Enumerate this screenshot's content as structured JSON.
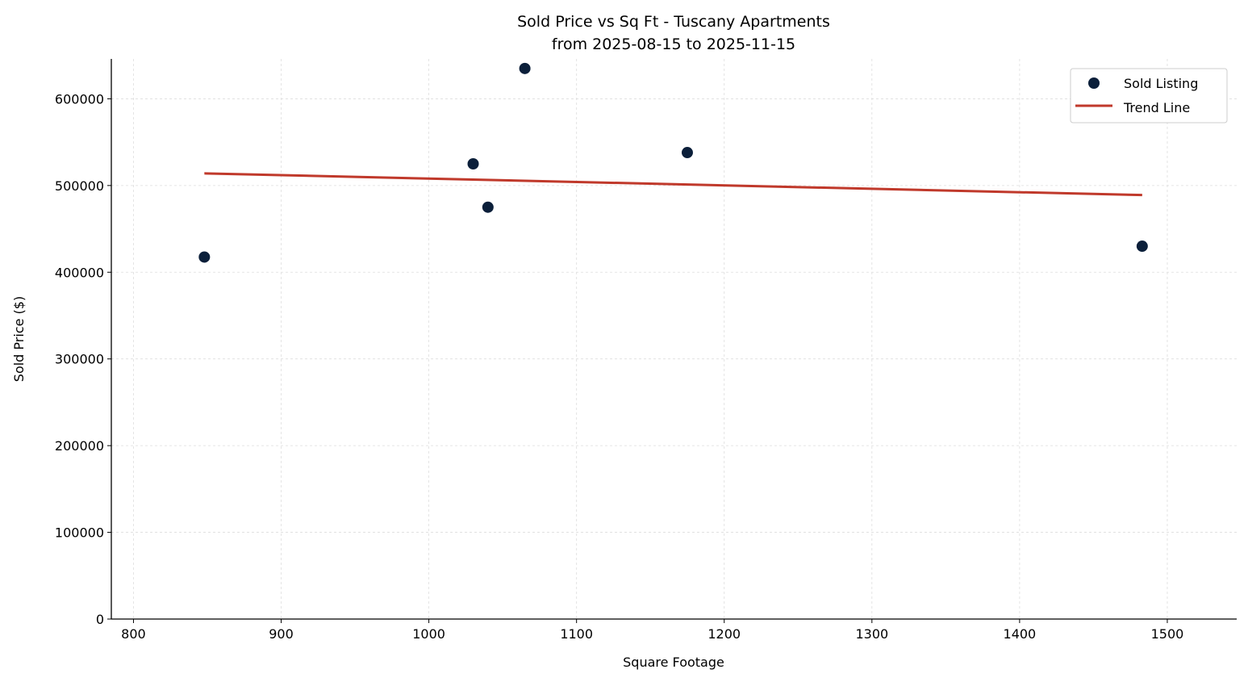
{
  "chart_data": {
    "type": "scatter",
    "title": "Sold Price vs Sq Ft - Tuscany Apartments",
    "subtitle": "from 2025-08-15 to 2025-11-15",
    "xlabel": "Square Footage",
    "ylabel": "Sold Price ($)",
    "xlim": [
      785,
      1547
    ],
    "ylim": [
      0,
      646000
    ],
    "xticks": [
      800,
      900,
      1000,
      1100,
      1200,
      1300,
      1400,
      1500
    ],
    "yticks": [
      0,
      100000,
      200000,
      300000,
      400000,
      500000,
      600000
    ],
    "grid": true,
    "legend_position": "top-right",
    "series": [
      {
        "name": "Sold Listing",
        "kind": "scatter",
        "color": "#0b1f3a",
        "points": [
          {
            "x": 848,
            "y": 417500
          },
          {
            "x": 1030,
            "y": 525000
          },
          {
            "x": 1040,
            "y": 475000
          },
          {
            "x": 1065,
            "y": 635000
          },
          {
            "x": 1175,
            "y": 538000
          },
          {
            "x": 1483,
            "y": 430000
          }
        ]
      },
      {
        "name": "Trend Line",
        "kind": "line",
        "color": "#c0392b",
        "points": [
          {
            "x": 848,
            "y": 514000
          },
          {
            "x": 1483,
            "y": 489000
          }
        ]
      }
    ]
  }
}
